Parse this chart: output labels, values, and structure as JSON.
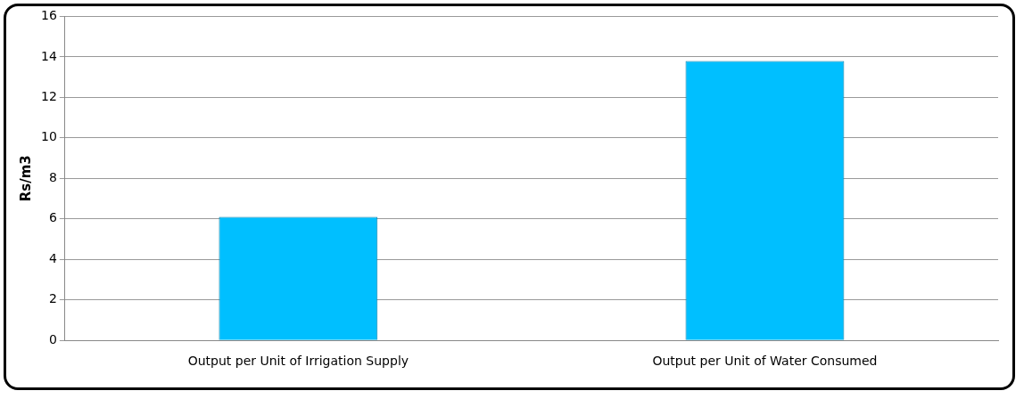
{
  "chart_data": {
    "type": "bar",
    "ylabel": "Rs/m3",
    "categories": [
      "Output per Unit of Irrigation Supply",
      "Output per Unit of Water Consumed"
    ],
    "values": [
      6.1,
      13.8
    ],
    "color": "#00bfff",
    "ylim": [
      0,
      16
    ],
    "yticks": [
      0,
      2,
      4,
      6,
      8,
      10,
      12,
      14,
      16
    ],
    "grid": "y"
  }
}
